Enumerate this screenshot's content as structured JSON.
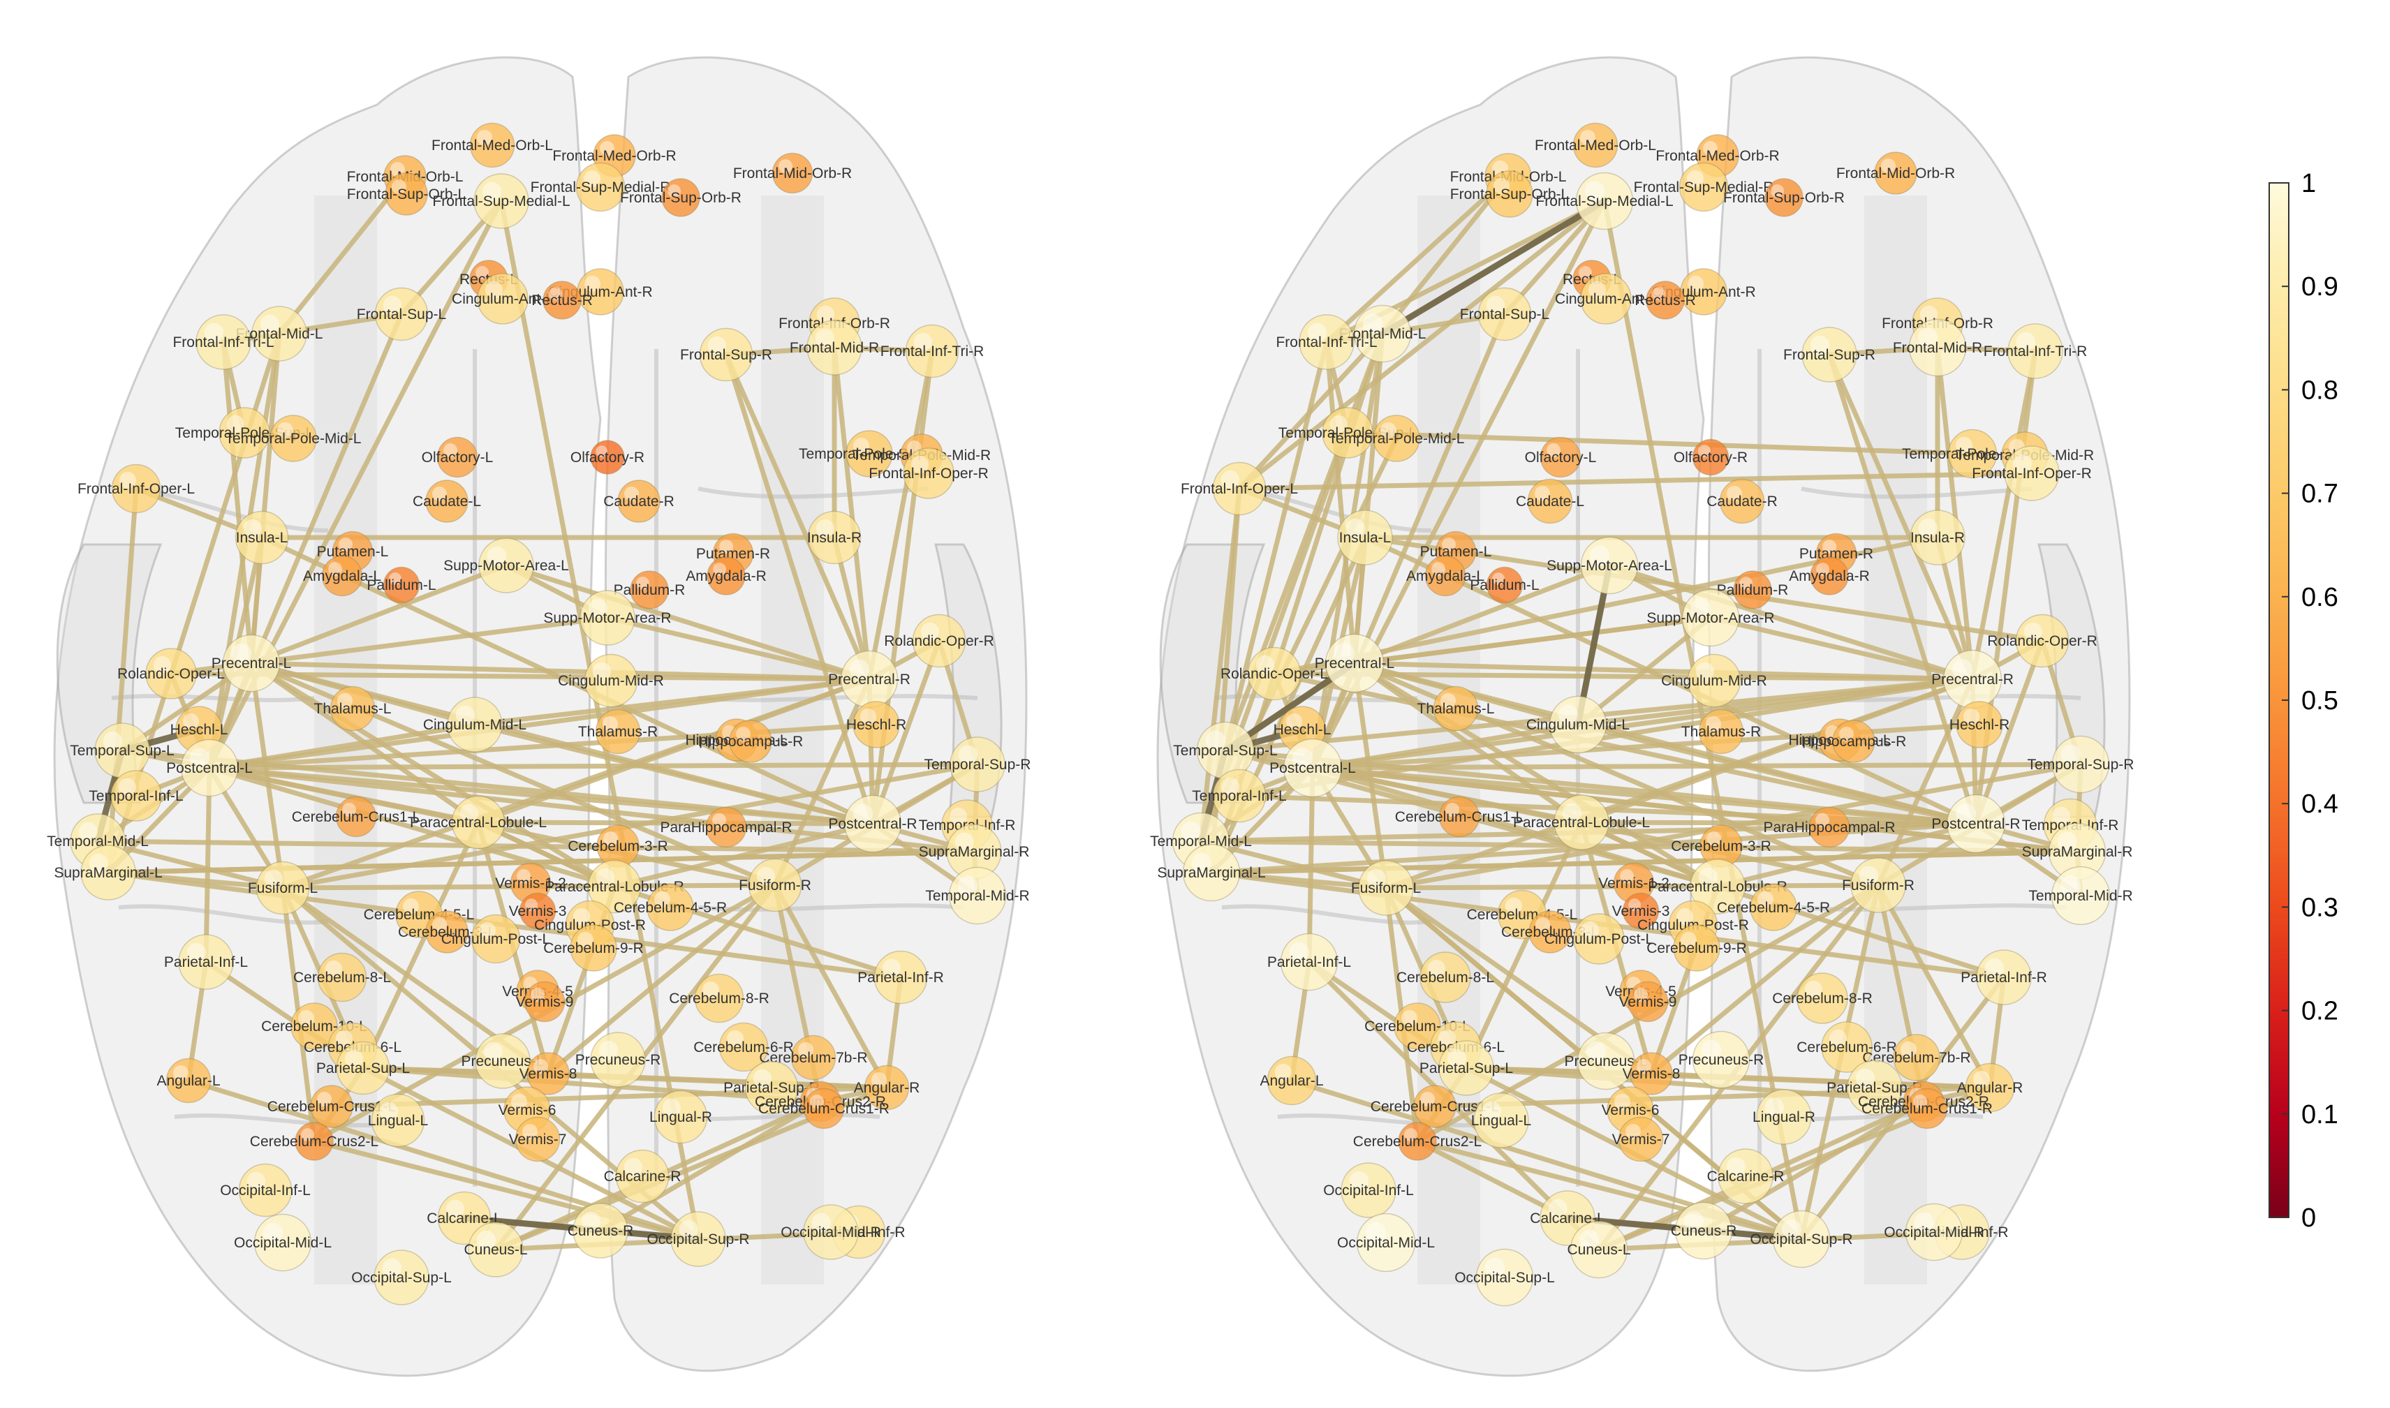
{
  "colormap": {
    "title": "",
    "ticks": [
      "0",
      "0.1",
      "0.2",
      "0.3",
      "0.4",
      "0.5",
      "0.6",
      "0.7",
      "0.8",
      "0.9",
      "1"
    ],
    "stops": [
      "#7a0019",
      "#b8001c",
      "#d9201a",
      "#ec4a1c",
      "#f5722a",
      "#f9943a",
      "#fbb24f",
      "#fcca69",
      "#fddd88",
      "#fdecab",
      "#fefadc"
    ]
  },
  "colors": {
    "edge": "#c8b47a",
    "edge_dark": "#6f6446",
    "brain": "#d9d9d9"
  },
  "brain_left": {
    "nodes": [
      {
        "label": "Frontal-Med-Orb-L",
        "v": 0.65
      },
      {
        "label": "Frontal-Med-Orb-R",
        "v": 0.6
      },
      {
        "label": "Frontal-Mid-Orb-L",
        "v": 0.6
      },
      {
        "label": "Frontal-Mid-Orb-R",
        "v": 0.55
      },
      {
        "label": "Frontal-Sup-Orb-L",
        "v": 0.6
      },
      {
        "label": "Frontal-Sup-Medial-L",
        "v": 0.9
      },
      {
        "label": "Frontal-Sup-Medial-R",
        "v": 0.75
      },
      {
        "label": "Frontal-Sup-Orb-R",
        "v": 0.5
      },
      {
        "label": "Rectus-L",
        "v": 0.5
      },
      {
        "label": "Cingulum-Ant-L",
        "v": 0.8
      },
      {
        "label": "Cingulum-Ant-R",
        "v": 0.7
      },
      {
        "label": "Rectus-R",
        "v": 0.5
      },
      {
        "label": "Frontal-Mid-L",
        "v": 0.9
      },
      {
        "label": "Frontal-Sup-L",
        "v": 0.85
      },
      {
        "label": "Frontal-Inf-Tri-L",
        "v": 0.9
      },
      {
        "label": "Frontal-Sup-R",
        "v": 0.85
      },
      {
        "label": "Frontal-Inf-Orb-R",
        "v": 0.8
      },
      {
        "label": "Frontal-Mid-R",
        "v": 0.9
      },
      {
        "label": "Frontal-Inf-Tri-R",
        "v": 0.85
      },
      {
        "label": "Temporal-Pole-Sup-L",
        "v": 0.8
      },
      {
        "label": "Temporal-Pole-Mid-L",
        "v": 0.7
      },
      {
        "label": "Olfactory-L",
        "v": 0.55
      },
      {
        "label": "Olfactory-R",
        "v": 0.4
      },
      {
        "label": "Temporal-Pole-Sup-R",
        "v": 0.7
      },
      {
        "label": "Temporal-Pole-Mid-R",
        "v": 0.6
      },
      {
        "label": "Frontal-Inf-Oper-L",
        "v": 0.75
      },
      {
        "label": "Frontal-Inf-Oper-R",
        "v": 0.8
      },
      {
        "label": "Caudate-L",
        "v": 0.6
      },
      {
        "label": "Caudate-R",
        "v": 0.6
      },
      {
        "label": "Insula-L",
        "v": 0.85
      },
      {
        "label": "Insula-R",
        "v": 0.85
      },
      {
        "label": "Putamen-L",
        "v": 0.55
      },
      {
        "label": "Putamen-R",
        "v": 0.55
      },
      {
        "label": "Amygdala-L",
        "v": 0.55
      },
      {
        "label": "Pallidum-L",
        "v": 0.45
      },
      {
        "label": "Supp-Motor-Area-L",
        "v": 0.9
      },
      {
        "label": "Pallidum-R",
        "v": 0.5
      },
      {
        "label": "Amygdala-R",
        "v": 0.5
      },
      {
        "label": "Supp-Motor-Area-R",
        "v": 0.9
      },
      {
        "label": "Rolandic-Oper-R",
        "v": 0.85
      },
      {
        "label": "Precentral-L",
        "v": 0.95
      },
      {
        "label": "Rolandic-Oper-L",
        "v": 0.8
      },
      {
        "label": "Cingulum-Mid-R",
        "v": 0.85
      },
      {
        "label": "Precentral-R",
        "v": 0.95
      },
      {
        "label": "Heschl-L",
        "v": 0.7
      },
      {
        "label": "Hippocampus-L",
        "v": 0.6
      },
      {
        "label": "Thalamus-L",
        "v": 0.65
      },
      {
        "label": "Cingulum-Mid-L",
        "v": 0.9
      },
      {
        "label": "Thalamus-R",
        "v": 0.65
      },
      {
        "label": "Hippocampus-R",
        "v": 0.6
      },
      {
        "label": "Heschl-R",
        "v": 0.7
      },
      {
        "label": "Temporal-Sup-L",
        "v": 0.9
      },
      {
        "label": "Postcentral-L",
        "v": 0.95
      },
      {
        "label": "Temporal-Sup-R",
        "v": 0.9
      },
      {
        "label": "Temporal-Inf-L",
        "v": 0.8
      },
      {
        "label": "Cerebelum-Crus1-L",
        "v": 0.55
      },
      {
        "label": "Paracentral-Lobule-L",
        "v": 0.85
      },
      {
        "label": "ParaHippocampal-R",
        "v": 0.55
      },
      {
        "label": "Postcentral-R",
        "v": 0.95
      },
      {
        "label": "Temporal-Inf-R",
        "v": 0.8
      },
      {
        "label": "Temporal-Mid-L",
        "v": 0.9
      },
      {
        "label": "Cerebelum-3-R",
        "v": 0.6
      },
      {
        "label": "SupraMarginal-R",
        "v": 0.9
      },
      {
        "label": "SupraMarginal-L",
        "v": 0.9
      },
      {
        "label": "Fusiform-L",
        "v": 0.85
      },
      {
        "label": "Vermis-1-2",
        "v": 0.55
      },
      {
        "label": "Paracentral-Lobule-R",
        "v": 0.85
      },
      {
        "label": "Fusiform-R",
        "v": 0.85
      },
      {
        "label": "Temporal-Mid-R",
        "v": 0.95
      },
      {
        "label": "Vermis-3",
        "v": 0.45
      },
      {
        "label": "Cerebelum-4-5-R",
        "v": 0.7
      },
      {
        "label": "Cerebelum-4-5-L",
        "v": 0.7
      },
      {
        "label": "Cingulum-Post-R",
        "v": 0.75
      },
      {
        "label": "Cerebelum-3-L",
        "v": 0.6
      },
      {
        "label": "Cingulum-Post-L",
        "v": 0.75
      },
      {
        "label": "Cerebelum-9-R",
        "v": 0.7
      },
      {
        "label": "Parietal-Inf-L",
        "v": 0.9
      },
      {
        "label": "Parietal-Inf-R",
        "v": 0.85
      },
      {
        "label": "Cerebelum-8-L",
        "v": 0.75
      },
      {
        "label": "Vermis-4-5",
        "v": 0.6
      },
      {
        "label": "Vermis-9",
        "v": 0.55
      },
      {
        "label": "Cerebelum-8-R",
        "v": 0.75
      },
      {
        "label": "Cerebelum-10-L",
        "v": 0.7
      },
      {
        "label": "Cerebelum-6-L",
        "v": 0.75
      },
      {
        "label": "Cerebelum-6-R",
        "v": 0.75
      },
      {
        "label": "Cerebelum-7b-R",
        "v": 0.65
      },
      {
        "label": "Angular-L",
        "v": 0.65
      },
      {
        "label": "Parietal-Sup-L",
        "v": 0.85
      },
      {
        "label": "Precuneus-L",
        "v": 0.9
      },
      {
        "label": "Vermis-8",
        "v": 0.6
      },
      {
        "label": "Precuneus-R",
        "v": 0.9
      },
      {
        "label": "Angular-R",
        "v": 0.65
      },
      {
        "label": "Cerebelum-Crus1-L",
        "v": 0.6
      },
      {
        "label": "Vermis-6",
        "v": 0.7
      },
      {
        "label": "Parietal-Sup-R",
        "v": 0.85
      },
      {
        "label": "Cerebelum-Crus2-R",
        "v": 0.55
      },
      {
        "label": "Cerebelum-Crus1-R",
        "v": 0.55
      },
      {
        "label": "Lingual-L",
        "v": 0.85
      },
      {
        "label": "Lingual-R",
        "v": 0.85
      },
      {
        "label": "Cerebelum-Crus2-L",
        "v": 0.5
      },
      {
        "label": "Vermis-7",
        "v": 0.65
      },
      {
        "label": "Calcarine-R",
        "v": 0.85
      },
      {
        "label": "Occipital-Inf-L",
        "v": 0.85
      },
      {
        "label": "Occipital-Inf-R",
        "v": 0.85
      },
      {
        "label": "Calcarine-L",
        "v": 0.85
      },
      {
        "label": "Cuneus-R",
        "v": 0.9
      },
      {
        "label": "Occipital-Mid-R",
        "v": 0.9
      },
      {
        "label": "Occipital-Mid-L",
        "v": 0.95
      },
      {
        "label": "Cuneus-L",
        "v": 0.9
      },
      {
        "label": "Occipital-Sup-R",
        "v": 0.9
      },
      {
        "label": "Occipital-Sup-L",
        "v": 0.9
      }
    ]
  },
  "brain_right": {
    "nodes": [
      {
        "label": "Frontal-Med-Orb-L",
        "v": 0.65
      },
      {
        "label": "Frontal-Med-Orb-R",
        "v": 0.6
      },
      {
        "label": "Frontal-Mid-Orb-L",
        "v": 0.7
      },
      {
        "label": "Frontal-Mid-Orb-R",
        "v": 0.6
      },
      {
        "label": "Frontal-Sup-Orb-L",
        "v": 0.7
      },
      {
        "label": "Frontal-Sup-Medial-L",
        "v": 0.95
      },
      {
        "label": "Frontal-Sup-Medial-R",
        "v": 0.75
      },
      {
        "label": "Frontal-Sup-Orb-R",
        "v": 0.5
      },
      {
        "label": "Rectus-L",
        "v": 0.5
      },
      {
        "label": "Cingulum-Ant-L",
        "v": 0.8
      },
      {
        "label": "Cingulum-Ant-R",
        "v": 0.7
      },
      {
        "label": "Rectus-R",
        "v": 0.5
      },
      {
        "label": "Frontal-Mid-L",
        "v": 0.95
      },
      {
        "label": "Frontal-Sup-L",
        "v": 0.85
      },
      {
        "label": "Frontal-Inf-Tri-L",
        "v": 0.9
      },
      {
        "label": "Frontal-Sup-R",
        "v": 0.9
      },
      {
        "label": "Frontal-Inf-Orb-R",
        "v": 0.8
      },
      {
        "label": "Frontal-Mid-R",
        "v": 0.95
      },
      {
        "label": "Frontal-Inf-Tri-R",
        "v": 0.9
      },
      {
        "label": "Temporal-Pole-Sup-L",
        "v": 0.8
      },
      {
        "label": "Temporal-Pole-Mid-L",
        "v": 0.7
      },
      {
        "label": "Olfactory-L",
        "v": 0.55
      },
      {
        "label": "Olfactory-R",
        "v": 0.45
      },
      {
        "label": "Temporal-Pole-Sup-R",
        "v": 0.75
      },
      {
        "label": "Temporal-Pole-Mid-R",
        "v": 0.7
      },
      {
        "label": "Frontal-Inf-Oper-L",
        "v": 0.85
      },
      {
        "label": "Frontal-Inf-Oper-R",
        "v": 0.9
      },
      {
        "label": "Caudate-L",
        "v": 0.65
      },
      {
        "label": "Caudate-R",
        "v": 0.65
      },
      {
        "label": "Insula-L",
        "v": 0.9
      },
      {
        "label": "Insula-R",
        "v": 0.9
      },
      {
        "label": "Putamen-L",
        "v": 0.55
      },
      {
        "label": "Putamen-R",
        "v": 0.55
      },
      {
        "label": "Amygdala-L",
        "v": 0.55
      },
      {
        "label": "Pallidum-L",
        "v": 0.45
      },
      {
        "label": "Supp-Motor-Area-L",
        "v": 0.95
      },
      {
        "label": "Pallidum-R",
        "v": 0.5
      },
      {
        "label": "Amygdala-R",
        "v": 0.5
      },
      {
        "label": "Supp-Motor-Area-R",
        "v": 0.95
      },
      {
        "label": "Rolandic-Oper-R",
        "v": 0.85
      },
      {
        "label": "Precentral-L",
        "v": 0.98
      },
      {
        "label": "Rolandic-Oper-L",
        "v": 0.85
      },
      {
        "label": "Cingulum-Mid-R",
        "v": 0.85
      },
      {
        "label": "Precentral-R",
        "v": 0.98
      },
      {
        "label": "Heschl-L",
        "v": 0.7
      },
      {
        "label": "Hippocampus-L",
        "v": 0.6
      },
      {
        "label": "Thalamus-L",
        "v": 0.65
      },
      {
        "label": "Cingulum-Mid-L",
        "v": 0.95
      },
      {
        "label": "Thalamus-R",
        "v": 0.65
      },
      {
        "label": "Hippocampus-R",
        "v": 0.6
      },
      {
        "label": "Heschl-R",
        "v": 0.7
      },
      {
        "label": "Temporal-Sup-L",
        "v": 0.95
      },
      {
        "label": "Postcentral-L",
        "v": 0.98
      },
      {
        "label": "Temporal-Sup-R",
        "v": 0.95
      },
      {
        "label": "Temporal-Inf-L",
        "v": 0.85
      },
      {
        "label": "Cerebelum-Crus1-L",
        "v": 0.55
      },
      {
        "label": "Paracentral-Lobule-L",
        "v": 0.9
      },
      {
        "label": "ParaHippocampal-R",
        "v": 0.55
      },
      {
        "label": "Postcentral-R",
        "v": 0.98
      },
      {
        "label": "Temporal-Inf-R",
        "v": 0.85
      },
      {
        "label": "Temporal-Mid-L",
        "v": 0.95
      },
      {
        "label": "Cerebelum-3-R",
        "v": 0.6
      },
      {
        "label": "SupraMarginal-R",
        "v": 0.95
      },
      {
        "label": "SupraMarginal-L",
        "v": 0.95
      },
      {
        "label": "Fusiform-L",
        "v": 0.9
      },
      {
        "label": "Vermis-1-2",
        "v": 0.55
      },
      {
        "label": "Paracentral-Lobule-R",
        "v": 0.9
      },
      {
        "label": "Fusiform-R",
        "v": 0.9
      },
      {
        "label": "Temporal-Mid-R",
        "v": 0.98
      },
      {
        "label": "Vermis-3",
        "v": 0.45
      },
      {
        "label": "Cerebelum-4-5-R",
        "v": 0.7
      },
      {
        "label": "Cerebelum-4-5-L",
        "v": 0.75
      },
      {
        "label": "Cingulum-Post-R",
        "v": 0.75
      },
      {
        "label": "Cerebelum-3-L",
        "v": 0.6
      },
      {
        "label": "Cingulum-Post-L",
        "v": 0.8
      },
      {
        "label": "Cerebelum-9-R",
        "v": 0.7
      },
      {
        "label": "Parietal-Inf-L",
        "v": 0.95
      },
      {
        "label": "Parietal-Inf-R",
        "v": 0.9
      },
      {
        "label": "Cerebelum-8-L",
        "v": 0.8
      },
      {
        "label": "Vermis-4-5",
        "v": 0.6
      },
      {
        "label": "Vermis-9",
        "v": 0.55
      },
      {
        "label": "Cerebelum-8-R",
        "v": 0.8
      },
      {
        "label": "Cerebelum-10-L",
        "v": 0.7
      },
      {
        "label": "Cerebelum-6-L",
        "v": 0.8
      },
      {
        "label": "Cerebelum-6-R",
        "v": 0.8
      },
      {
        "label": "Cerebelum-7b-R",
        "v": 0.7
      },
      {
        "label": "Angular-L",
        "v": 0.75
      },
      {
        "label": "Parietal-Sup-L",
        "v": 0.9
      },
      {
        "label": "Precuneus-L",
        "v": 0.95
      },
      {
        "label": "Vermis-8",
        "v": 0.6
      },
      {
        "label": "Precuneus-R",
        "v": 0.95
      },
      {
        "label": "Angular-R",
        "v": 0.75
      },
      {
        "label": "Cerebelum-Crus1-L",
        "v": 0.6
      },
      {
        "label": "Vermis-6",
        "v": 0.7
      },
      {
        "label": "Parietal-Sup-R",
        "v": 0.9
      },
      {
        "label": "Cerebelum-Crus2-R",
        "v": 0.55
      },
      {
        "label": "Cerebelum-Crus1-R",
        "v": 0.55
      },
      {
        "label": "Lingual-L",
        "v": 0.9
      },
      {
        "label": "Lingual-R",
        "v": 0.9
      },
      {
        "label": "Cerebelum-Crus2-L",
        "v": 0.5
      },
      {
        "label": "Vermis-7",
        "v": 0.65
      },
      {
        "label": "Calcarine-R",
        "v": 0.9
      },
      {
        "label": "Occipital-Inf-L",
        "v": 0.9
      },
      {
        "label": "Occipital-Inf-R",
        "v": 0.9
      },
      {
        "label": "Calcarine-L",
        "v": 0.9
      },
      {
        "label": "Cuneus-R",
        "v": 0.95
      },
      {
        "label": "Occipital-Mid-R",
        "v": 0.95
      },
      {
        "label": "Occipital-Mid-L",
        "v": 0.98
      },
      {
        "label": "Cuneus-L",
        "v": 0.95
      },
      {
        "label": "Occipital-Sup-R",
        "v": 0.95
      },
      {
        "label": "Occipital-Sup-L",
        "v": 0.95
      }
    ]
  }
}
